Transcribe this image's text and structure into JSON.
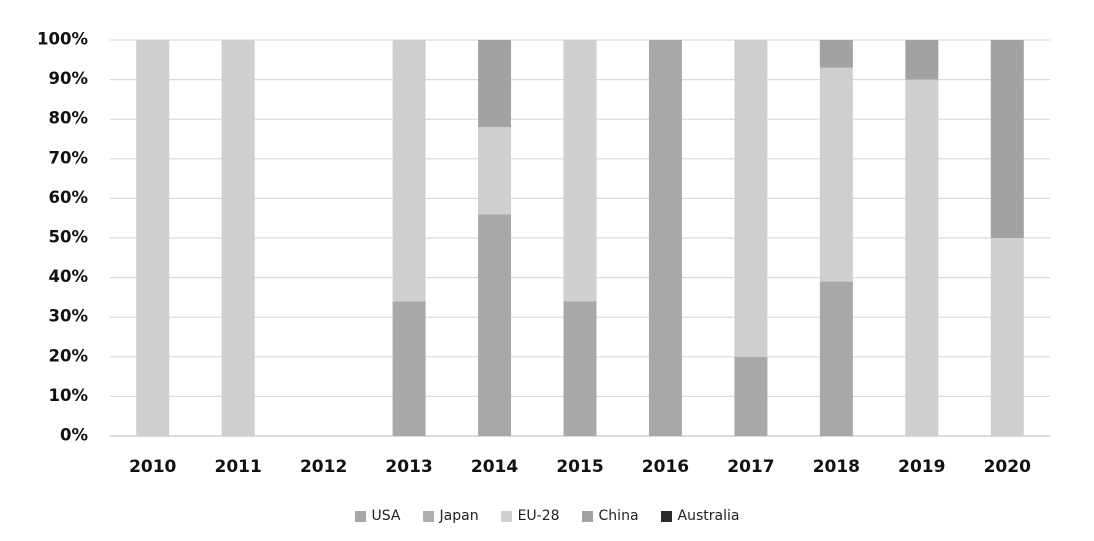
{
  "chart_data": {
    "type": "bar",
    "stacked": true,
    "categories": [
      "2010",
      "2011",
      "2012",
      "2013",
      "2014",
      "2015",
      "2016",
      "2017",
      "2018",
      "2019",
      "2020"
    ],
    "series": [
      {
        "name": "USA",
        "color": "#a8a8a8",
        "values": [
          0,
          0,
          0,
          34,
          56,
          34,
          100,
          20,
          39,
          0,
          0
        ]
      },
      {
        "name": "Japan",
        "color": "#aeaeae",
        "values": [
          0,
          0,
          0,
          0,
          0,
          0,
          0,
          0,
          0,
          0,
          0
        ]
      },
      {
        "name": "EU-28",
        "color": "#cfcfcf",
        "values": [
          100,
          100,
          0,
          66,
          22,
          66,
          0,
          80,
          54,
          90,
          50
        ]
      },
      {
        "name": "China",
        "color": "#a2a2a2",
        "values": [
          0,
          0,
          0,
          0,
          22,
          0,
          0,
          0,
          7,
          10,
          50
        ]
      },
      {
        "name": "Australia",
        "color": "#2a2a2a",
        "values": [
          0,
          0,
          0,
          0,
          0,
          0,
          0,
          0,
          0,
          0,
          0
        ]
      }
    ],
    "ylim": [
      0,
      100
    ],
    "ytick_labels": [
      "0%",
      "10%",
      "20%",
      "30%",
      "40%",
      "50%",
      "60%",
      "70%",
      "80%",
      "90%",
      "100%"
    ],
    "xlabel": "",
    "ylabel": "",
    "title": "",
    "grid": true,
    "legend_position": "bottom"
  }
}
